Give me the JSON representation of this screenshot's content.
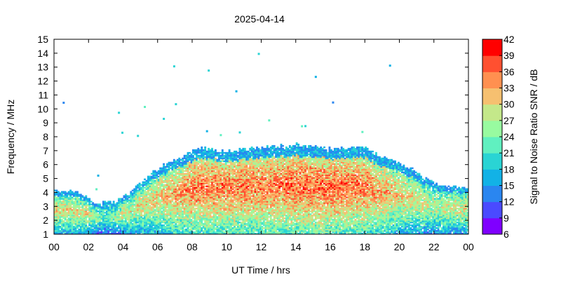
{
  "chart_data": {
    "type": "heatmap",
    "title": "2025-04-14",
    "xlabel": "UT Time / hrs",
    "ylabel": "Frequency / MHz",
    "colorbar_label": "Signal to Noise Ratio SNR / dB",
    "xlim": [
      0,
      24
    ],
    "ylim": [
      1,
      15
    ],
    "x_ticks": [
      "00",
      "02",
      "04",
      "06",
      "08",
      "10",
      "12",
      "14",
      "16",
      "18",
      "20",
      "22",
      "00"
    ],
    "y_ticks": [
      "1",
      "2",
      "3",
      "4",
      "5",
      "6",
      "7",
      "8",
      "9",
      "10",
      "11",
      "12",
      "13",
      "14",
      "15"
    ],
    "colorbar": {
      "min": 6,
      "max": 42,
      "ticks": [
        "6",
        "9",
        "12",
        "15",
        "18",
        "21",
        "24",
        "27",
        "30",
        "33",
        "36",
        "39",
        "42"
      ],
      "colors": [
        "#7f00ff",
        "#4a4aff",
        "#2a86f0",
        "#12b2e6",
        "#2ad4d4",
        "#60f0c0",
        "#98fba0",
        "#c4e88a",
        "#f6c070",
        "#ff9050",
        "#ff5030",
        "#ff0000"
      ]
    },
    "envelope": {
      "description_points_hour_vs_top_freq_MHz": [
        [
          0,
          4.1
        ],
        [
          1.5,
          3.9
        ],
        [
          2.5,
          3.2
        ],
        [
          3.5,
          3.3
        ],
        [
          4.5,
          4.0
        ],
        [
          5.5,
          5.2
        ],
        [
          6.5,
          6.0
        ],
        [
          7.5,
          6.6
        ],
        [
          8.5,
          7.2
        ],
        [
          10,
          6.9
        ],
        [
          12,
          7.2
        ],
        [
          14,
          7.4
        ],
        [
          16,
          7.1
        ],
        [
          18,
          7.2
        ],
        [
          19,
          6.5
        ],
        [
          20.5,
          5.8
        ],
        [
          22,
          4.6
        ],
        [
          24,
          4.2
        ]
      ],
      "peak_snr_dB_by_hour": [
        [
          0,
          35
        ],
        [
          2,
          34
        ],
        [
          3,
          28
        ],
        [
          4,
          33
        ],
        [
          6,
          36
        ],
        [
          8,
          40
        ],
        [
          10,
          40
        ],
        [
          12,
          40
        ],
        [
          14,
          41
        ],
        [
          16,
          41
        ],
        [
          18,
          40
        ],
        [
          20,
          36
        ],
        [
          22,
          33
        ],
        [
          24,
          34
        ]
      ]
    }
  }
}
